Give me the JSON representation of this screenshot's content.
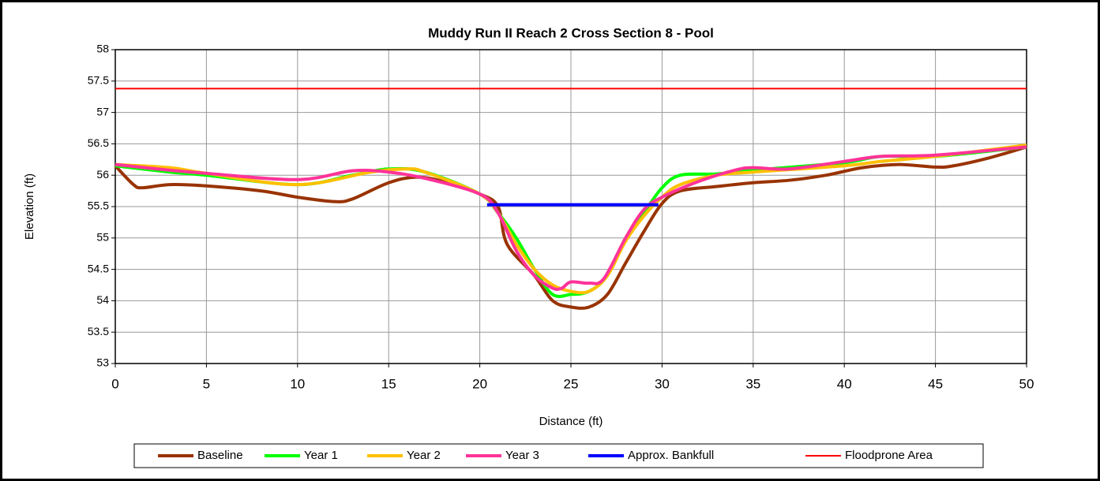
{
  "chart_data": {
    "type": "line",
    "title": "Muddy Run II Reach 2 Cross Section 8 - Pool",
    "xlabel": "Distance (ft)",
    "ylabel": "Elevation (ft)",
    "xlim": [
      0,
      50
    ],
    "xticks": [
      0,
      5,
      10,
      15,
      20,
      25,
      30,
      35,
      40,
      45,
      50
    ],
    "ylim": [
      53,
      58
    ],
    "yticks": [
      53,
      53.5,
      54,
      54.5,
      55,
      55.5,
      56,
      56.5,
      57,
      57.5,
      58
    ],
    "grid": true,
    "legend": "bottom",
    "series": [
      {
        "name": "Baseline",
        "color": "#993300",
        "width": 4,
        "x": [
          0,
          1,
          1.5,
          3,
          5,
          8,
          10,
          12,
          13,
          15,
          16.5,
          18,
          20,
          21,
          21.5,
          23,
          24,
          25,
          26,
          27,
          28,
          29,
          30,
          31,
          33,
          35,
          37,
          39,
          41,
          43,
          45,
          46,
          48,
          50
        ],
        "values": [
          56.15,
          55.85,
          55.8,
          55.85,
          55.83,
          55.75,
          55.65,
          55.58,
          55.62,
          55.88,
          55.97,
          55.9,
          55.7,
          55.5,
          54.9,
          54.4,
          54.0,
          53.9,
          53.9,
          54.1,
          54.6,
          55.1,
          55.55,
          55.75,
          55.82,
          55.88,
          55.92,
          56.0,
          56.12,
          56.17,
          56.13,
          56.15,
          56.28,
          56.45
        ]
      },
      {
        "name": "Year 1",
        "color": "#00ff00",
        "width": 4,
        "x": [
          0,
          3,
          5,
          10,
          13,
          15,
          17,
          20,
          21,
          22,
          23,
          24,
          25,
          26,
          27,
          28,
          29,
          30,
          31,
          33,
          35,
          40,
          42,
          45,
          50
        ],
        "values": [
          56.15,
          56.05,
          56.0,
          55.85,
          56.0,
          56.1,
          56.05,
          55.7,
          55.4,
          55.0,
          54.5,
          54.1,
          54.1,
          54.15,
          54.4,
          55.0,
          55.4,
          55.8,
          56.0,
          56.02,
          56.08,
          56.2,
          56.3,
          56.3,
          56.45
        ]
      },
      {
        "name": "Year 2",
        "color": "#ffc000",
        "width": 4,
        "x": [
          0,
          3,
          5,
          10,
          14,
          16,
          17,
          20,
          21,
          22,
          23,
          24,
          25,
          26,
          27,
          28,
          29,
          30,
          31,
          33,
          35,
          40,
          42,
          45,
          50
        ],
        "values": [
          56.17,
          56.12,
          56.03,
          55.85,
          56.05,
          56.1,
          56.05,
          55.7,
          55.4,
          54.9,
          54.5,
          54.25,
          54.15,
          54.15,
          54.4,
          54.95,
          55.35,
          55.65,
          55.85,
          56.0,
          56.05,
          56.15,
          56.22,
          56.3,
          56.48
        ]
      },
      {
        "name": "Year 3",
        "color": "#ff3399",
        "width": 4,
        "x": [
          0,
          3,
          5,
          10,
          13,
          15,
          17,
          20,
          21,
          22,
          23,
          24,
          24.5,
          25,
          26,
          26.8,
          28,
          29,
          30,
          32,
          34,
          35,
          37,
          40,
          42,
          45,
          50
        ],
        "values": [
          56.17,
          56.08,
          56.03,
          55.93,
          56.07,
          56.05,
          55.95,
          55.7,
          55.4,
          54.8,
          54.4,
          54.2,
          54.2,
          54.3,
          54.28,
          54.35,
          55.0,
          55.45,
          55.65,
          55.9,
          56.08,
          56.12,
          56.1,
          56.22,
          56.3,
          56.32,
          56.45
        ]
      },
      {
        "name": "Approx. Bankfull",
        "color": "#0000ff",
        "width": 4,
        "x": [
          20.4,
          29.8
        ],
        "values": [
          55.53,
          55.53
        ]
      },
      {
        "name": "Floodprone Area",
        "color": "#ff0000",
        "width": 2,
        "x": [
          0,
          50
        ],
        "values": [
          57.38,
          57.38
        ]
      }
    ]
  }
}
